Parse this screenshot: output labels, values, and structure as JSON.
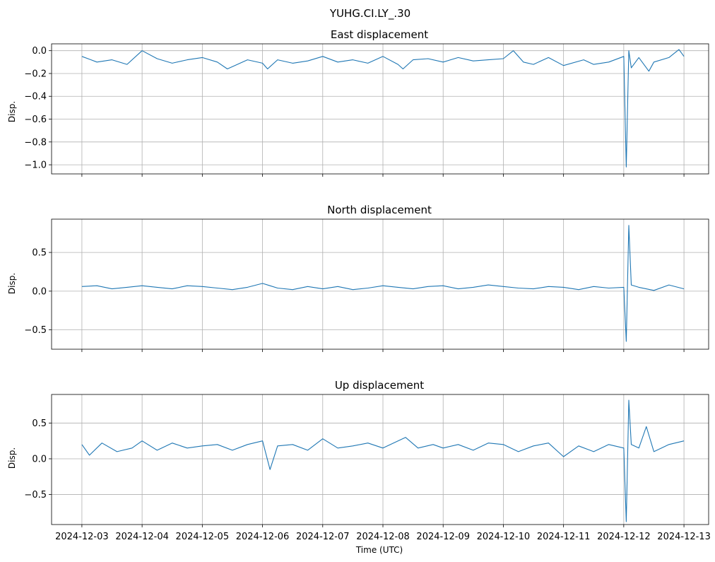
{
  "figure": {
    "suptitle": "YUHG.CI.LY_.30",
    "xlabel": "Time (UTC)",
    "line_color": "#1f77b4",
    "grid_color": "#b0b0b0"
  },
  "chart_data": [
    {
      "type": "line",
      "title": "East displacement",
      "ylabel": "Disp.",
      "xlim": [
        "2024-12-02T11:55",
        "2024-12-13T09:50"
      ],
      "ylim": [
        -1.08,
        0.06
      ],
      "yticks": [
        0.0,
        -0.2,
        -0.4,
        -0.6,
        -0.8,
        -1.0
      ],
      "ytick_labels": [
        "0.0",
        "−0.2",
        "−0.4",
        "−0.6",
        "−0.8",
        "−1.0"
      ],
      "grid": true,
      "show_xtick_labels": false,
      "x": [
        "2024-12-03T00:00",
        "2024-12-03T06:00",
        "2024-12-03T12:00",
        "2024-12-03T18:00",
        "2024-12-04T00:00",
        "2024-12-04T06:00",
        "2024-12-04T12:00",
        "2024-12-04T18:00",
        "2024-12-05T00:00",
        "2024-12-05T06:00",
        "2024-12-05T10:00",
        "2024-12-05T18:00",
        "2024-12-06T00:00",
        "2024-12-06T02:00",
        "2024-12-06T06:00",
        "2024-12-06T12:00",
        "2024-12-06T18:00",
        "2024-12-07T00:00",
        "2024-12-07T06:00",
        "2024-12-07T12:00",
        "2024-12-07T18:00",
        "2024-12-08T00:00",
        "2024-12-08T06:00",
        "2024-12-08T08:00",
        "2024-12-08T12:00",
        "2024-12-08T18:00",
        "2024-12-09T00:00",
        "2024-12-09T06:00",
        "2024-12-09T12:00",
        "2024-12-09T18:00",
        "2024-12-10T00:00",
        "2024-12-10T04:00",
        "2024-12-10T08:00",
        "2024-12-10T12:00",
        "2024-12-10T18:00",
        "2024-12-11T00:00",
        "2024-12-11T08:00",
        "2024-12-11T12:00",
        "2024-12-11T18:00",
        "2024-12-12T00:00",
        "2024-12-12T01:00",
        "2024-12-12T02:00",
        "2024-12-12T03:00",
        "2024-12-12T06:00",
        "2024-12-12T10:00",
        "2024-12-12T12:00",
        "2024-12-12T18:00",
        "2024-12-12T22:00",
        "2024-12-13T00:00"
      ],
      "values": [
        -0.05,
        -0.1,
        -0.08,
        -0.12,
        0.0,
        -0.07,
        -0.11,
        -0.08,
        -0.06,
        -0.1,
        -0.16,
        -0.08,
        -0.11,
        -0.16,
        -0.08,
        -0.11,
        -0.09,
        -0.05,
        -0.1,
        -0.08,
        -0.11,
        -0.05,
        -0.12,
        -0.16,
        -0.08,
        -0.07,
        -0.1,
        -0.06,
        -0.09,
        -0.08,
        -0.07,
        0.0,
        -0.1,
        -0.12,
        -0.06,
        -0.13,
        -0.08,
        -0.12,
        -0.1,
        -0.05,
        -1.02,
        0.0,
        -0.15,
        -0.06,
        -0.18,
        -0.1,
        -0.06,
        0.01,
        -0.05
      ]
    },
    {
      "type": "line",
      "title": "North displacement",
      "ylabel": "Disp.",
      "xlim": [
        "2024-12-02T11:55",
        "2024-12-13T09:50"
      ],
      "ylim": [
        -0.75,
        0.93
      ],
      "yticks": [
        0.5,
        0.0,
        -0.5
      ],
      "ytick_labels": [
        "0.5",
        "0.0",
        "−0.5"
      ],
      "grid": true,
      "show_xtick_labels": false,
      "x": [
        "2024-12-03T00:00",
        "2024-12-03T06:00",
        "2024-12-03T12:00",
        "2024-12-03T18:00",
        "2024-12-04T00:00",
        "2024-12-04T06:00",
        "2024-12-04T12:00",
        "2024-12-04T18:00",
        "2024-12-05T00:00",
        "2024-12-05T06:00",
        "2024-12-05T12:00",
        "2024-12-05T18:00",
        "2024-12-06T00:00",
        "2024-12-06T03:00",
        "2024-12-06T06:00",
        "2024-12-06T12:00",
        "2024-12-06T18:00",
        "2024-12-07T00:00",
        "2024-12-07T06:00",
        "2024-12-07T12:00",
        "2024-12-07T18:00",
        "2024-12-08T00:00",
        "2024-12-08T06:00",
        "2024-12-08T12:00",
        "2024-12-08T18:00",
        "2024-12-09T00:00",
        "2024-12-09T06:00",
        "2024-12-09T12:00",
        "2024-12-09T18:00",
        "2024-12-10T00:00",
        "2024-12-10T06:00",
        "2024-12-10T12:00",
        "2024-12-10T18:00",
        "2024-12-11T00:00",
        "2024-12-11T06:00",
        "2024-12-11T12:00",
        "2024-12-11T18:00",
        "2024-12-12T00:00",
        "2024-12-12T01:00",
        "2024-12-12T02:00",
        "2024-12-12T03:00",
        "2024-12-12T06:00",
        "2024-12-12T12:00",
        "2024-12-12T18:00",
        "2024-12-13T00:00"
      ],
      "values": [
        0.06,
        0.07,
        0.03,
        0.05,
        0.07,
        0.05,
        0.03,
        0.07,
        0.06,
        0.04,
        0.02,
        0.05,
        0.1,
        0.07,
        0.04,
        0.02,
        0.06,
        0.03,
        0.06,
        0.02,
        0.04,
        0.07,
        0.05,
        0.03,
        0.06,
        0.07,
        0.03,
        0.05,
        0.08,
        0.06,
        0.04,
        0.03,
        0.06,
        0.05,
        0.02,
        0.06,
        0.04,
        0.05,
        -0.65,
        0.85,
        0.08,
        0.05,
        0.01,
        0.08,
        0.03
      ]
    },
    {
      "type": "line",
      "title": "Up displacement",
      "ylabel": "Disp.",
      "xlim": [
        "2024-12-02T11:55",
        "2024-12-13T09:50"
      ],
      "ylim": [
        -0.92,
        0.9
      ],
      "yticks": [
        0.5,
        0.0,
        -0.5
      ],
      "ytick_labels": [
        "0.5",
        "0.0",
        "−0.5"
      ],
      "xticks": [
        "2024-12-03",
        "2024-12-04",
        "2024-12-05",
        "2024-12-06",
        "2024-12-07",
        "2024-12-08",
        "2024-12-09",
        "2024-12-10",
        "2024-12-11",
        "2024-12-12",
        "2024-12-13"
      ],
      "grid": true,
      "show_xtick_labels": true,
      "x": [
        "2024-12-03T00:00",
        "2024-12-03T03:00",
        "2024-12-03T08:00",
        "2024-12-03T14:00",
        "2024-12-03T20:00",
        "2024-12-04T00:00",
        "2024-12-04T06:00",
        "2024-12-04T12:00",
        "2024-12-04T18:00",
        "2024-12-05T00:00",
        "2024-12-05T06:00",
        "2024-12-05T12:00",
        "2024-12-05T18:00",
        "2024-12-06T00:00",
        "2024-12-06T03:00",
        "2024-12-06T06:00",
        "2024-12-06T12:00",
        "2024-12-06T18:00",
        "2024-12-07T00:00",
        "2024-12-07T06:00",
        "2024-12-07T12:00",
        "2024-12-07T18:00",
        "2024-12-08T00:00",
        "2024-12-08T06:00",
        "2024-12-08T09:00",
        "2024-12-08T14:00",
        "2024-12-08T20:00",
        "2024-12-09T00:00",
        "2024-12-09T06:00",
        "2024-12-09T12:00",
        "2024-12-09T18:00",
        "2024-12-10T00:00",
        "2024-12-10T06:00",
        "2024-12-10T12:00",
        "2024-12-10T18:00",
        "2024-12-11T00:00",
        "2024-12-11T06:00",
        "2024-12-11T12:00",
        "2024-12-11T18:00",
        "2024-12-12T00:00",
        "2024-12-12T01:00",
        "2024-12-12T02:00",
        "2024-12-12T03:00",
        "2024-12-12T06:00",
        "2024-12-12T09:00",
        "2024-12-12T12:00",
        "2024-12-12T18:00",
        "2024-12-13T00:00"
      ],
      "values": [
        0.2,
        0.05,
        0.22,
        0.1,
        0.15,
        0.25,
        0.12,
        0.22,
        0.15,
        0.18,
        0.2,
        0.12,
        0.2,
        0.25,
        -0.15,
        0.18,
        0.2,
        0.12,
        0.28,
        0.15,
        0.18,
        0.22,
        0.15,
        0.25,
        0.3,
        0.15,
        0.2,
        0.15,
        0.2,
        0.12,
        0.22,
        0.2,
        0.1,
        0.18,
        0.22,
        0.03,
        0.18,
        0.1,
        0.2,
        0.15,
        -0.88,
        0.82,
        0.2,
        0.15,
        0.45,
        0.1,
        0.2,
        0.25
      ]
    }
  ]
}
